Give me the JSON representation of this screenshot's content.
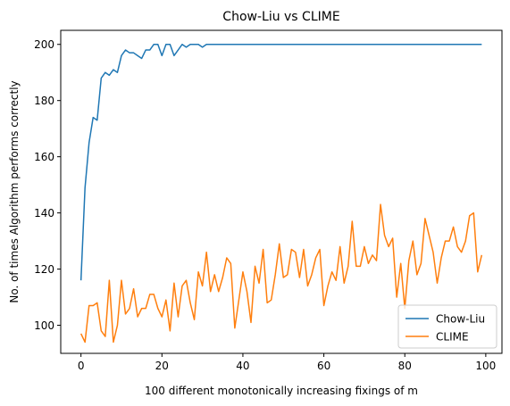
{
  "chart_data": {
    "type": "line",
    "title": "Chow-Liu vs CLIME",
    "xlabel": "100 different monotonically increasing fixings of m",
    "ylabel": "No. of times Algorithm performs correctly",
    "xlim": [
      -5,
      104
    ],
    "ylim": [
      90,
      205
    ],
    "xticks": [
      0,
      20,
      40,
      60,
      80,
      100
    ],
    "yticks": [
      100,
      120,
      140,
      160,
      180,
      200
    ],
    "grid": false,
    "legend_position": "lower-right",
    "series": [
      {
        "name": "Chow-Liu",
        "color": "#1f77b4",
        "values": [
          116,
          149,
          165,
          174,
          173,
          188,
          190,
          189,
          191,
          190,
          196,
          198,
          197,
          197,
          196,
          195,
          198,
          198,
          200,
          200,
          196,
          200,
          200,
          196,
          198,
          200,
          199,
          200,
          200,
          200,
          199,
          200,
          200,
          200,
          200,
          200,
          200,
          200,
          200,
          200,
          200,
          200,
          200,
          200,
          200,
          200,
          200,
          200,
          200,
          200,
          200,
          200,
          200,
          200,
          200,
          200,
          200,
          200,
          200,
          200,
          200,
          200,
          200,
          200,
          200,
          200,
          200,
          200,
          200,
          200,
          200,
          200,
          200,
          200,
          200,
          200,
          200,
          200,
          200,
          200,
          200,
          200,
          200,
          200,
          200,
          200,
          200,
          200,
          200,
          200,
          200,
          200,
          200,
          200,
          200,
          200,
          200,
          200,
          200,
          200
        ]
      },
      {
        "name": "CLIME",
        "color": "#ff7f0e",
        "values": [
          97,
          94,
          107,
          107,
          108,
          98,
          96,
          116,
          94,
          100,
          116,
          104,
          106,
          113,
          103,
          106,
          106,
          111,
          111,
          106,
          103,
          109,
          98,
          115,
          103,
          114,
          116,
          108,
          102,
          119,
          114,
          126,
          112,
          118,
          112,
          117,
          124,
          122,
          99,
          109,
          119,
          112,
          101,
          121,
          115,
          127,
          108,
          109,
          118,
          129,
          117,
          118,
          127,
          126,
          117,
          127,
          114,
          118,
          124,
          127,
          107,
          114,
          119,
          116,
          128,
          115,
          121,
          137,
          121,
          121,
          128,
          122,
          125,
          123,
          143,
          132,
          128,
          131,
          110,
          122,
          106,
          123,
          130,
          118,
          122,
          138,
          132,
          126,
          115,
          124,
          130,
          130,
          135,
          128,
          126,
          130,
          139,
          140,
          119,
          125
        ]
      }
    ]
  }
}
